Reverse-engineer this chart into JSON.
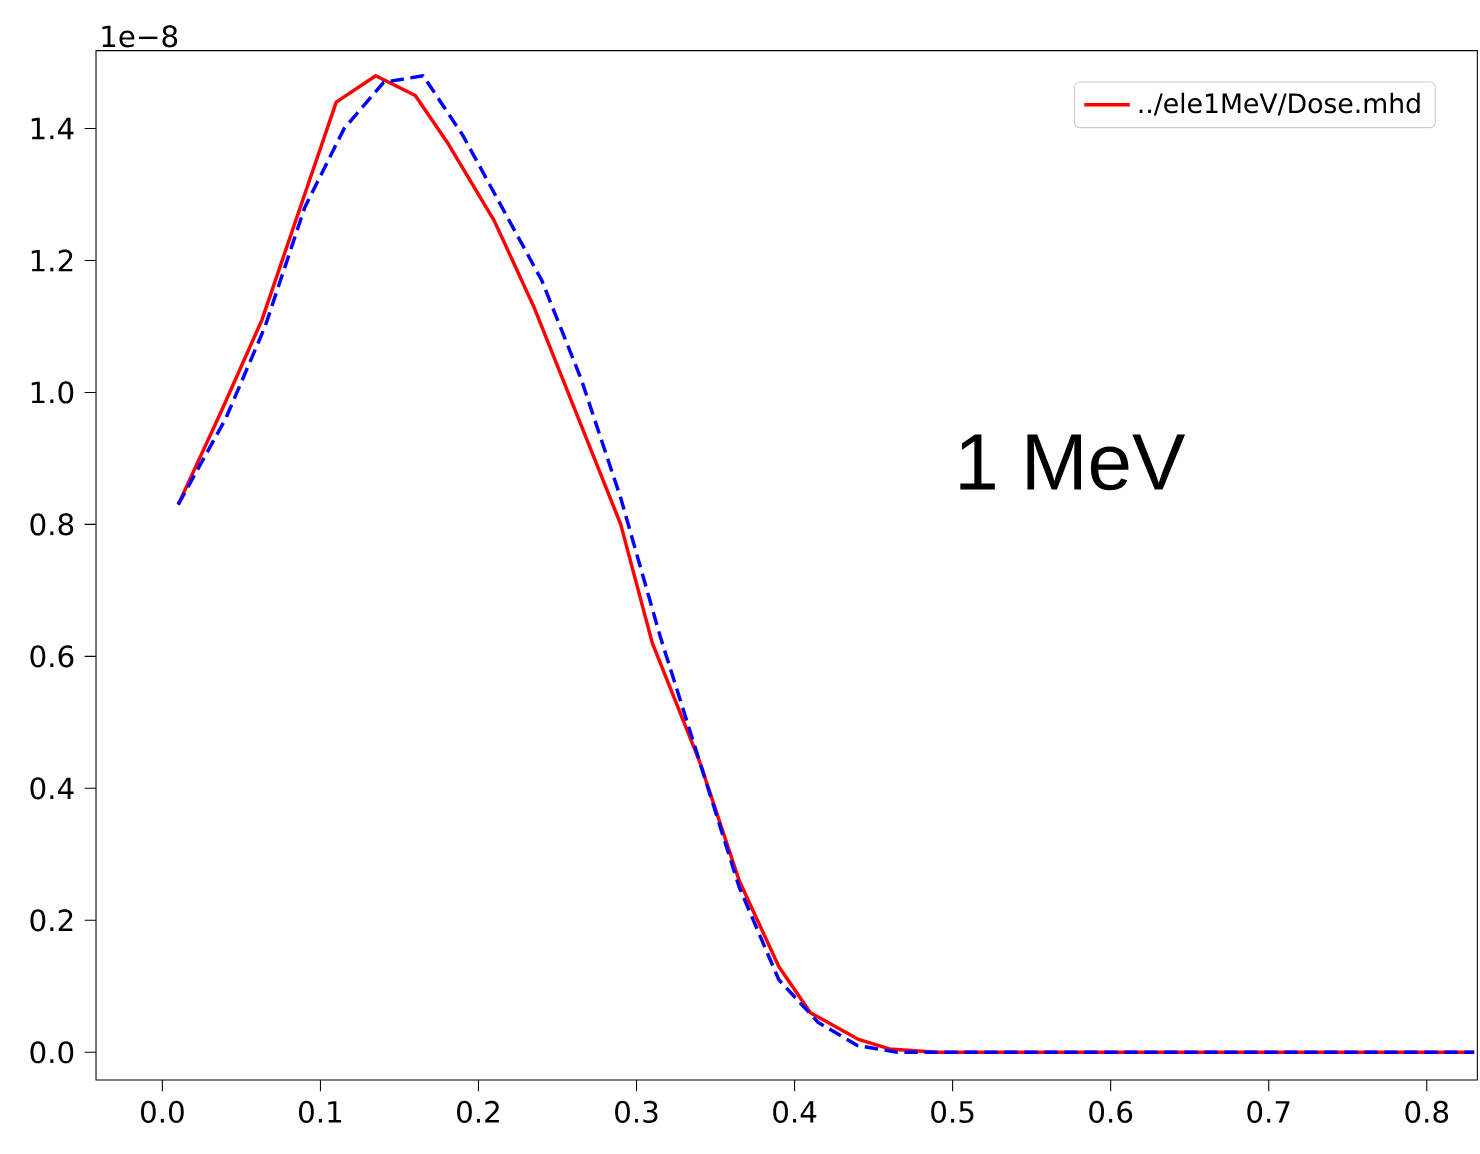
{
  "chart_data": {
    "type": "line",
    "legend": "top right",
    "xlim": [
      -0.042,
      0.832
    ],
    "ylim": [
      -0.042,
      1.518
    ],
    "xticks": [
      {
        "value": 0,
        "label": "0.0"
      },
      {
        "value": 0.1,
        "label": "0.1"
      },
      {
        "value": 0.2,
        "label": "0.2"
      },
      {
        "value": 0.3,
        "label": "0.3"
      },
      {
        "value": 0.4,
        "label": "0.4"
      },
      {
        "value": 0.5,
        "label": "0.5"
      },
      {
        "value": 0.6,
        "label": "0.6"
      },
      {
        "value": 0.7,
        "label": "0.7"
      },
      {
        "value": 0.8,
        "label": "0.8"
      }
    ],
    "yticks": [
      {
        "value": 0,
        "label": "0.0"
      },
      {
        "value": 0.2,
        "label": "0.2"
      },
      {
        "value": 0.4,
        "label": "0.4"
      },
      {
        "value": 0.6,
        "label": "0.6"
      },
      {
        "value": 0.8,
        "label": "0.8"
      },
      {
        "value": 1.0,
        "label": "1.0"
      },
      {
        "value": 1.2,
        "label": "1.2"
      },
      {
        "value": 1.4,
        "label": "1.4"
      }
    ],
    "annotations": [
      "1e−8",
      "1 MeV"
    ],
    "series": [
      {
        "name": "../ele1MeV/Dose.mhd",
        "color": "#ff0000",
        "line_style": "solid",
        "x": [
          0.01,
          0.037,
          0.063,
          0.09,
          0.11,
          0.135,
          0.16,
          0.18,
          0.21,
          0.235,
          0.26,
          0.29,
          0.31,
          0.34,
          0.365,
          0.39,
          0.41,
          0.44,
          0.46,
          0.49,
          0.83
        ],
        "values": [
          0.83,
          0.97,
          1.11,
          1.3,
          1.44,
          1.48,
          1.45,
          1.38,
          1.26,
          1.13,
          0.98,
          0.8,
          0.62,
          0.44,
          0.26,
          0.13,
          0.06,
          0.02,
          0.005,
          0.0,
          0.0
        ]
      },
      {
        "color": "#0000ff",
        "line_style": "dashed",
        "x": [
          0.01,
          0.04,
          0.065,
          0.09,
          0.115,
          0.14,
          0.165,
          0.19,
          0.215,
          0.24,
          0.265,
          0.29,
          0.315,
          0.34,
          0.365,
          0.39,
          0.415,
          0.44,
          0.465,
          0.83
        ],
        "values": [
          0.83,
          0.96,
          1.1,
          1.28,
          1.4,
          1.47,
          1.48,
          1.39,
          1.28,
          1.17,
          1.02,
          0.84,
          0.63,
          0.44,
          0.25,
          0.11,
          0.045,
          0.01,
          0.0,
          0.0
        ]
      }
    ]
  }
}
